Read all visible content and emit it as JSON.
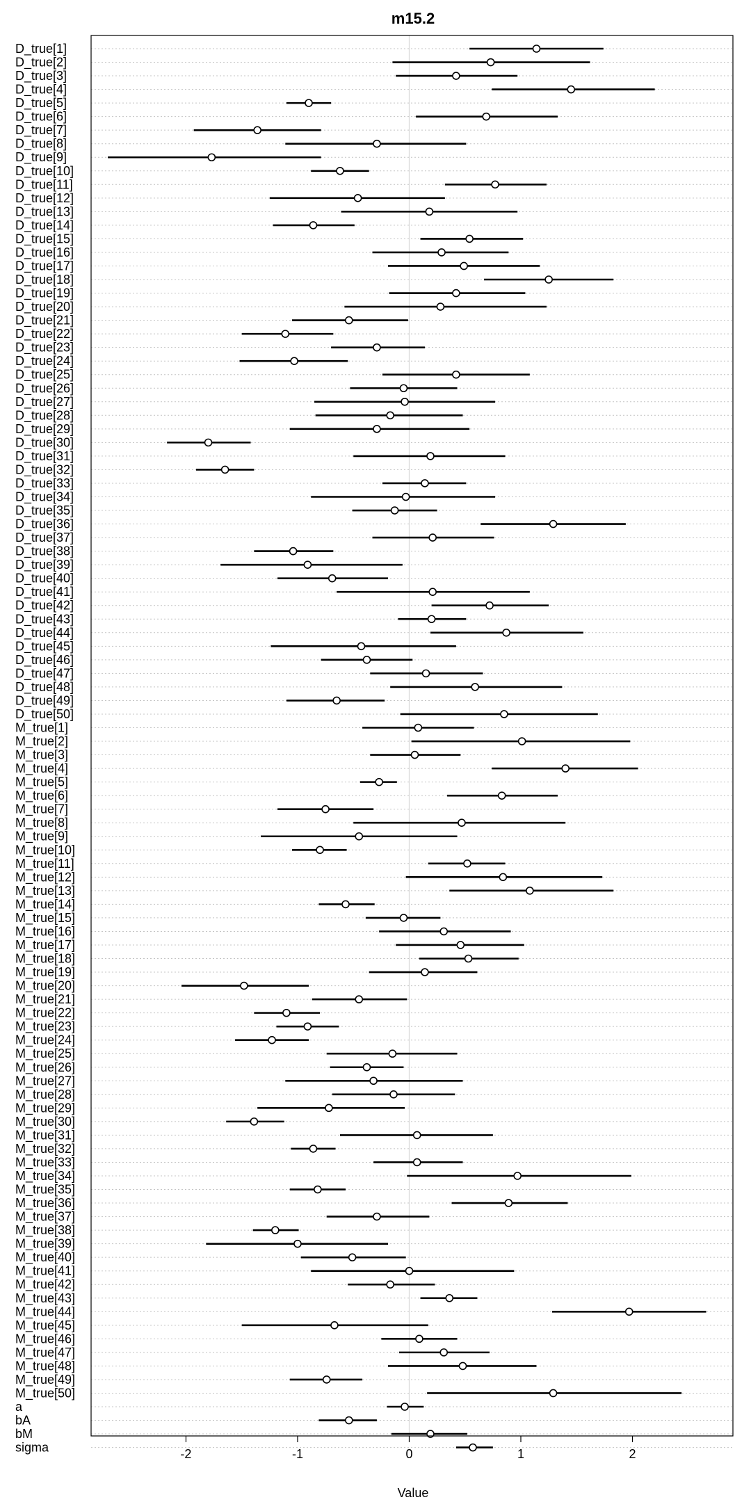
{
  "chart_data": {
    "type": "scatter",
    "title": "m15.2",
    "xlabel": "Value",
    "ylabel": "",
    "xlim": [
      -2.85,
      2.9
    ],
    "xticks": [
      -2,
      -1,
      0,
      1,
      2
    ],
    "xtick_labels": [
      "-2",
      "-1",
      "0",
      "1",
      "2"
    ],
    "grid": "dotted horizontal row guides",
    "reference_line": 0,
    "parameters": [
      {
        "label": "D_true[1]",
        "mean": 1.14,
        "lo": 0.54,
        "hi": 1.74
      },
      {
        "label": "D_true[2]",
        "mean": 0.73,
        "lo": -0.15,
        "hi": 1.62
      },
      {
        "label": "D_true[3]",
        "mean": 0.42,
        "lo": -0.12,
        "hi": 0.97
      },
      {
        "label": "D_true[4]",
        "mean": 1.45,
        "lo": 0.74,
        "hi": 2.2
      },
      {
        "label": "D_true[5]",
        "mean": -0.9,
        "lo": -1.1,
        "hi": -0.7
      },
      {
        "label": "D_true[6]",
        "mean": 0.69,
        "lo": 0.06,
        "hi": 1.33
      },
      {
        "label": "D_true[7]",
        "mean": -1.36,
        "lo": -1.93,
        "hi": -0.79
      },
      {
        "label": "D_true[8]",
        "mean": -0.29,
        "lo": -1.11,
        "hi": 0.51
      },
      {
        "label": "D_true[9]",
        "mean": -1.77,
        "lo": -2.7,
        "hi": -0.79
      },
      {
        "label": "D_true[10]",
        "mean": -0.62,
        "lo": -0.88,
        "hi": -0.36
      },
      {
        "label": "D_true[11]",
        "mean": 0.77,
        "lo": 0.32,
        "hi": 1.23
      },
      {
        "label": "D_true[12]",
        "mean": -0.46,
        "lo": -1.25,
        "hi": 0.32
      },
      {
        "label": "D_true[13]",
        "mean": 0.18,
        "lo": -0.61,
        "hi": 0.97
      },
      {
        "label": "D_true[14]",
        "mean": -0.86,
        "lo": -1.22,
        "hi": -0.49
      },
      {
        "label": "D_true[15]",
        "mean": 0.54,
        "lo": 0.1,
        "hi": 1.02
      },
      {
        "label": "D_true[16]",
        "mean": 0.29,
        "lo": -0.33,
        "hi": 0.89
      },
      {
        "label": "D_true[17]",
        "mean": 0.49,
        "lo": -0.19,
        "hi": 1.17
      },
      {
        "label": "D_true[18]",
        "mean": 1.25,
        "lo": 0.67,
        "hi": 1.83
      },
      {
        "label": "D_true[19]",
        "mean": 0.42,
        "lo": -0.18,
        "hi": 1.04
      },
      {
        "label": "D_true[20]",
        "mean": 0.28,
        "lo": -0.58,
        "hi": 1.23
      },
      {
        "label": "D_true[21]",
        "mean": -0.54,
        "lo": -1.05,
        "hi": -0.01
      },
      {
        "label": "D_true[22]",
        "mean": -1.11,
        "lo": -1.5,
        "hi": -0.68
      },
      {
        "label": "D_true[23]",
        "mean": -0.29,
        "lo": -0.7,
        "hi": 0.14
      },
      {
        "label": "D_true[24]",
        "mean": -1.03,
        "lo": -1.52,
        "hi": -0.55
      },
      {
        "label": "D_true[25]",
        "mean": 0.42,
        "lo": -0.24,
        "hi": 1.08
      },
      {
        "label": "D_true[26]",
        "mean": -0.05,
        "lo": -0.53,
        "hi": 0.43
      },
      {
        "label": "D_true[27]",
        "mean": -0.04,
        "lo": -0.85,
        "hi": 0.77
      },
      {
        "label": "D_true[28]",
        "mean": -0.17,
        "lo": -0.84,
        "hi": 0.48
      },
      {
        "label": "D_true[29]",
        "mean": -0.29,
        "lo": -1.07,
        "hi": 0.54
      },
      {
        "label": "D_true[30]",
        "mean": -1.8,
        "lo": -2.17,
        "hi": -1.42
      },
      {
        "label": "D_true[31]",
        "mean": 0.19,
        "lo": -0.5,
        "hi": 0.86
      },
      {
        "label": "D_true[32]",
        "mean": -1.65,
        "lo": -1.91,
        "hi": -1.39
      },
      {
        "label": "D_true[33]",
        "mean": 0.14,
        "lo": -0.24,
        "hi": 0.51
      },
      {
        "label": "D_true[34]",
        "mean": -0.03,
        "lo": -0.88,
        "hi": 0.77
      },
      {
        "label": "D_true[35]",
        "mean": -0.13,
        "lo": -0.51,
        "hi": 0.25
      },
      {
        "label": "D_true[36]",
        "mean": 1.29,
        "lo": 0.64,
        "hi": 1.94
      },
      {
        "label": "D_true[37]",
        "mean": 0.21,
        "lo": -0.33,
        "hi": 0.76
      },
      {
        "label": "D_true[38]",
        "mean": -1.04,
        "lo": -1.39,
        "hi": -0.68
      },
      {
        "label": "D_true[39]",
        "mean": -0.91,
        "lo": -1.69,
        "hi": -0.06
      },
      {
        "label": "D_true[40]",
        "mean": -0.69,
        "lo": -1.18,
        "hi": -0.19
      },
      {
        "label": "D_true[41]",
        "mean": 0.21,
        "lo": -0.65,
        "hi": 1.08
      },
      {
        "label": "D_true[42]",
        "mean": 0.72,
        "lo": 0.2,
        "hi": 1.25
      },
      {
        "label": "D_true[43]",
        "mean": 0.2,
        "lo": -0.1,
        "hi": 0.51
      },
      {
        "label": "D_true[44]",
        "mean": 0.87,
        "lo": 0.19,
        "hi": 1.56
      },
      {
        "label": "D_true[45]",
        "mean": -0.43,
        "lo": -1.24,
        "hi": 0.42
      },
      {
        "label": "D_true[46]",
        "mean": -0.38,
        "lo": -0.79,
        "hi": 0.03
      },
      {
        "label": "D_true[47]",
        "mean": 0.15,
        "lo": -0.35,
        "hi": 0.66
      },
      {
        "label": "D_true[48]",
        "mean": 0.59,
        "lo": -0.17,
        "hi": 1.37
      },
      {
        "label": "D_true[49]",
        "mean": -0.65,
        "lo": -1.1,
        "hi": -0.22
      },
      {
        "label": "D_true[50]",
        "mean": 0.85,
        "lo": -0.08,
        "hi": 1.69
      },
      {
        "label": "M_true[1]",
        "mean": 0.08,
        "lo": -0.42,
        "hi": 0.58
      },
      {
        "label": "M_true[2]",
        "mean": 1.01,
        "lo": 0.02,
        "hi": 1.98
      },
      {
        "label": "M_true[3]",
        "mean": 0.05,
        "lo": -0.35,
        "hi": 0.46
      },
      {
        "label": "M_true[4]",
        "mean": 1.4,
        "lo": 0.74,
        "hi": 2.05
      },
      {
        "label": "M_true[5]",
        "mean": -0.27,
        "lo": -0.44,
        "hi": -0.11
      },
      {
        "label": "M_true[6]",
        "mean": 0.83,
        "lo": 0.34,
        "hi": 1.33
      },
      {
        "label": "M_true[7]",
        "mean": -0.75,
        "lo": -1.18,
        "hi": -0.32
      },
      {
        "label": "M_true[8]",
        "mean": 0.47,
        "lo": -0.5,
        "hi": 1.4
      },
      {
        "label": "M_true[9]",
        "mean": -0.45,
        "lo": -1.33,
        "hi": 0.43
      },
      {
        "label": "M_true[10]",
        "mean": -0.8,
        "lo": -1.05,
        "hi": -0.56
      },
      {
        "label": "M_true[11]",
        "mean": 0.52,
        "lo": 0.17,
        "hi": 0.86
      },
      {
        "label": "M_true[12]",
        "mean": 0.84,
        "lo": -0.03,
        "hi": 1.73
      },
      {
        "label": "M_true[13]",
        "mean": 1.08,
        "lo": 0.36,
        "hi": 1.83
      },
      {
        "label": "M_true[14]",
        "mean": -0.57,
        "lo": -0.81,
        "hi": -0.31
      },
      {
        "label": "M_true[15]",
        "mean": -0.05,
        "lo": -0.39,
        "hi": 0.28
      },
      {
        "label": "M_true[16]",
        "mean": 0.31,
        "lo": -0.27,
        "hi": 0.91
      },
      {
        "label": "M_true[17]",
        "mean": 0.46,
        "lo": -0.12,
        "hi": 1.03
      },
      {
        "label": "M_true[18]",
        "mean": 0.53,
        "lo": 0.09,
        "hi": 0.98
      },
      {
        "label": "M_true[19]",
        "mean": 0.14,
        "lo": -0.36,
        "hi": 0.61
      },
      {
        "label": "M_true[20]",
        "mean": -1.48,
        "lo": -2.04,
        "hi": -0.9
      },
      {
        "label": "M_true[21]",
        "mean": -0.45,
        "lo": -0.87,
        "hi": -0.02
      },
      {
        "label": "M_true[22]",
        "mean": -1.1,
        "lo": -1.39,
        "hi": -0.8
      },
      {
        "label": "M_true[23]",
        "mean": -0.91,
        "lo": -1.19,
        "hi": -0.63
      },
      {
        "label": "M_true[24]",
        "mean": -1.23,
        "lo": -1.56,
        "hi": -0.9
      },
      {
        "label": "M_true[25]",
        "mean": -0.15,
        "lo": -0.74,
        "hi": 0.43
      },
      {
        "label": "M_true[26]",
        "mean": -0.38,
        "lo": -0.71,
        "hi": -0.05
      },
      {
        "label": "M_true[27]",
        "mean": -0.32,
        "lo": -1.11,
        "hi": 0.48
      },
      {
        "label": "M_true[28]",
        "mean": -0.14,
        "lo": -0.69,
        "hi": 0.41
      },
      {
        "label": "M_true[29]",
        "mean": -0.72,
        "lo": -1.36,
        "hi": -0.04
      },
      {
        "label": "M_true[30]",
        "mean": -1.39,
        "lo": -1.64,
        "hi": -1.12
      },
      {
        "label": "M_true[31]",
        "mean": 0.07,
        "lo": -0.62,
        "hi": 0.75
      },
      {
        "label": "M_true[32]",
        "mean": -0.86,
        "lo": -1.06,
        "hi": -0.66
      },
      {
        "label": "M_true[33]",
        "mean": 0.07,
        "lo": -0.32,
        "hi": 0.48
      },
      {
        "label": "M_true[34]",
        "mean": 0.97,
        "lo": -0.02,
        "hi": 1.99
      },
      {
        "label": "M_true[35]",
        "mean": -0.82,
        "lo": -1.07,
        "hi": -0.57
      },
      {
        "label": "M_true[36]",
        "mean": 0.89,
        "lo": 0.38,
        "hi": 1.42
      },
      {
        "label": "M_true[37]",
        "mean": -0.29,
        "lo": -0.74,
        "hi": 0.18
      },
      {
        "label": "M_true[38]",
        "mean": -1.2,
        "lo": -1.4,
        "hi": -0.99
      },
      {
        "label": "M_true[39]",
        "mean": -1.0,
        "lo": -1.82,
        "hi": -0.19
      },
      {
        "label": "M_true[40]",
        "mean": -0.51,
        "lo": -0.97,
        "hi": -0.03
      },
      {
        "label": "M_true[41]",
        "mean": 0.0,
        "lo": -0.88,
        "hi": 0.94
      },
      {
        "label": "M_true[42]",
        "mean": -0.17,
        "lo": -0.55,
        "hi": 0.23
      },
      {
        "label": "M_true[43]",
        "mean": 0.36,
        "lo": 0.1,
        "hi": 0.61
      },
      {
        "label": "M_true[44]",
        "mean": 1.97,
        "lo": 1.28,
        "hi": 2.66
      },
      {
        "label": "M_true[45]",
        "mean": -0.67,
        "lo": -1.5,
        "hi": 0.17
      },
      {
        "label": "M_true[46]",
        "mean": 0.09,
        "lo": -0.25,
        "hi": 0.43
      },
      {
        "label": "M_true[47]",
        "mean": 0.31,
        "lo": -0.09,
        "hi": 0.72
      },
      {
        "label": "M_true[48]",
        "mean": 0.48,
        "lo": -0.19,
        "hi": 1.14
      },
      {
        "label": "M_true[49]",
        "mean": -0.74,
        "lo": -1.07,
        "hi": -0.42
      },
      {
        "label": "M_true[50]",
        "mean": 1.29,
        "lo": 0.16,
        "hi": 2.44
      },
      {
        "label": "a",
        "mean": -0.04,
        "lo": -0.2,
        "hi": 0.13
      },
      {
        "label": "bA",
        "mean": -0.54,
        "lo": -0.81,
        "hi": -0.29
      },
      {
        "label": "bM",
        "mean": 0.19,
        "lo": -0.16,
        "hi": 0.52
      },
      {
        "label": "sigma",
        "mean": 0.57,
        "lo": 0.42,
        "hi": 0.75
      }
    ]
  }
}
